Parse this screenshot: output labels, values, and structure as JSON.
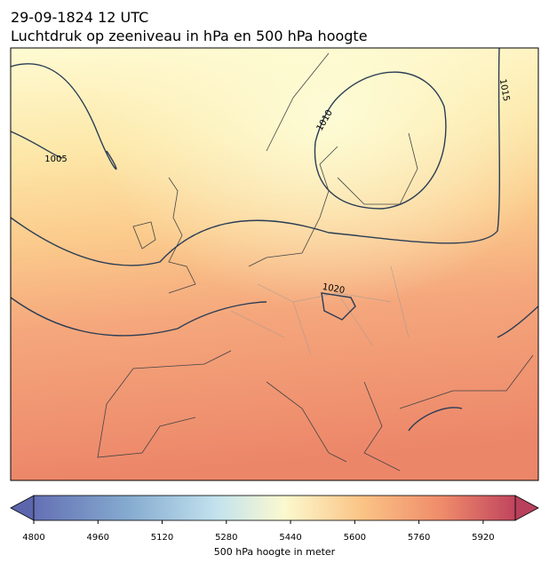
{
  "header": {
    "title": "29-09-1824 12 UTC",
    "subtitle": "Luchtdruk op zeeniveau in hPa en 500 hPa hoogte"
  },
  "contour_labels": [
    "1005",
    "1010",
    "1015",
    "1020"
  ],
  "colorbar": {
    "range": [
      4800,
      6000
    ],
    "ticks": [
      4800,
      4960,
      5120,
      5280,
      5440,
      5600,
      5760,
      5920
    ],
    "label": "500 hPa hoogte in meter"
  }
}
